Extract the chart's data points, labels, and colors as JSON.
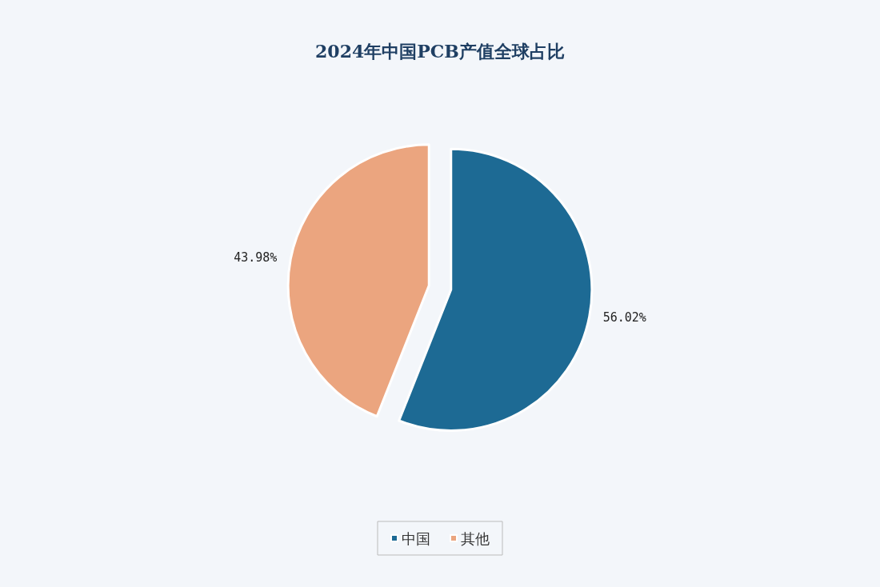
{
  "chart_data": {
    "type": "pie",
    "title": "2024年中国PCB产值全球占比",
    "categories": [
      "中国",
      "其他"
    ],
    "values": [
      56.02,
      43.98
    ],
    "colors": [
      "#1d6a94",
      "#eba57f"
    ],
    "value_labels": [
      "56.02%",
      "43.98%"
    ],
    "legend": "bottom"
  }
}
